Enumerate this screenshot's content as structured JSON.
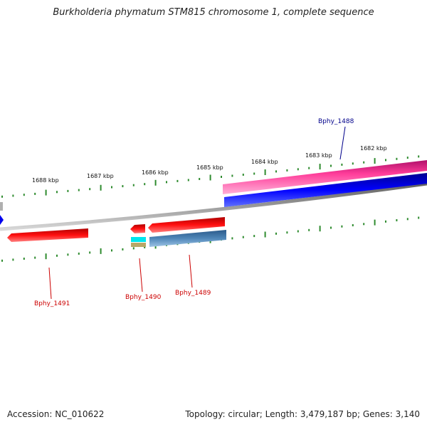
{
  "title": "Burkholderia phymatum STM815 chromosome 1, complete sequence",
  "footer": {
    "accession": "Accession: NC_010622",
    "info": "Topology: circular; Length: 3,479,187 bp; Genes: 3,140"
  },
  "ruler": {
    "ticks": [
      {
        "label": "1688 kbp"
      },
      {
        "label": "1687 kbp"
      },
      {
        "label": "1686 kbp"
      },
      {
        "label": "1685 kbp"
      },
      {
        "label": "1684 kbp"
      },
      {
        "label": "1683 kbp"
      },
      {
        "label": "1682 kbp"
      }
    ]
  },
  "genes": [
    {
      "name": "Bphy_1488",
      "color": "#00008b"
    },
    {
      "name": "Bphy_1489",
      "color": "#cc0000"
    },
    {
      "name": "Bphy_1490",
      "color": "#cc0000"
    },
    {
      "name": "Bphy_1491",
      "color": "#cc0000"
    }
  ],
  "colors": {
    "tick": "#2e8b2e",
    "backbone": "#808080",
    "forward_gene": "#ff1493",
    "forward_cds": "#0000ee",
    "reverse_gene": "#ee0000",
    "reverse_cds": "#4682b4",
    "misc_a": "#00ffff",
    "misc_b": "#bdb76b"
  }
}
